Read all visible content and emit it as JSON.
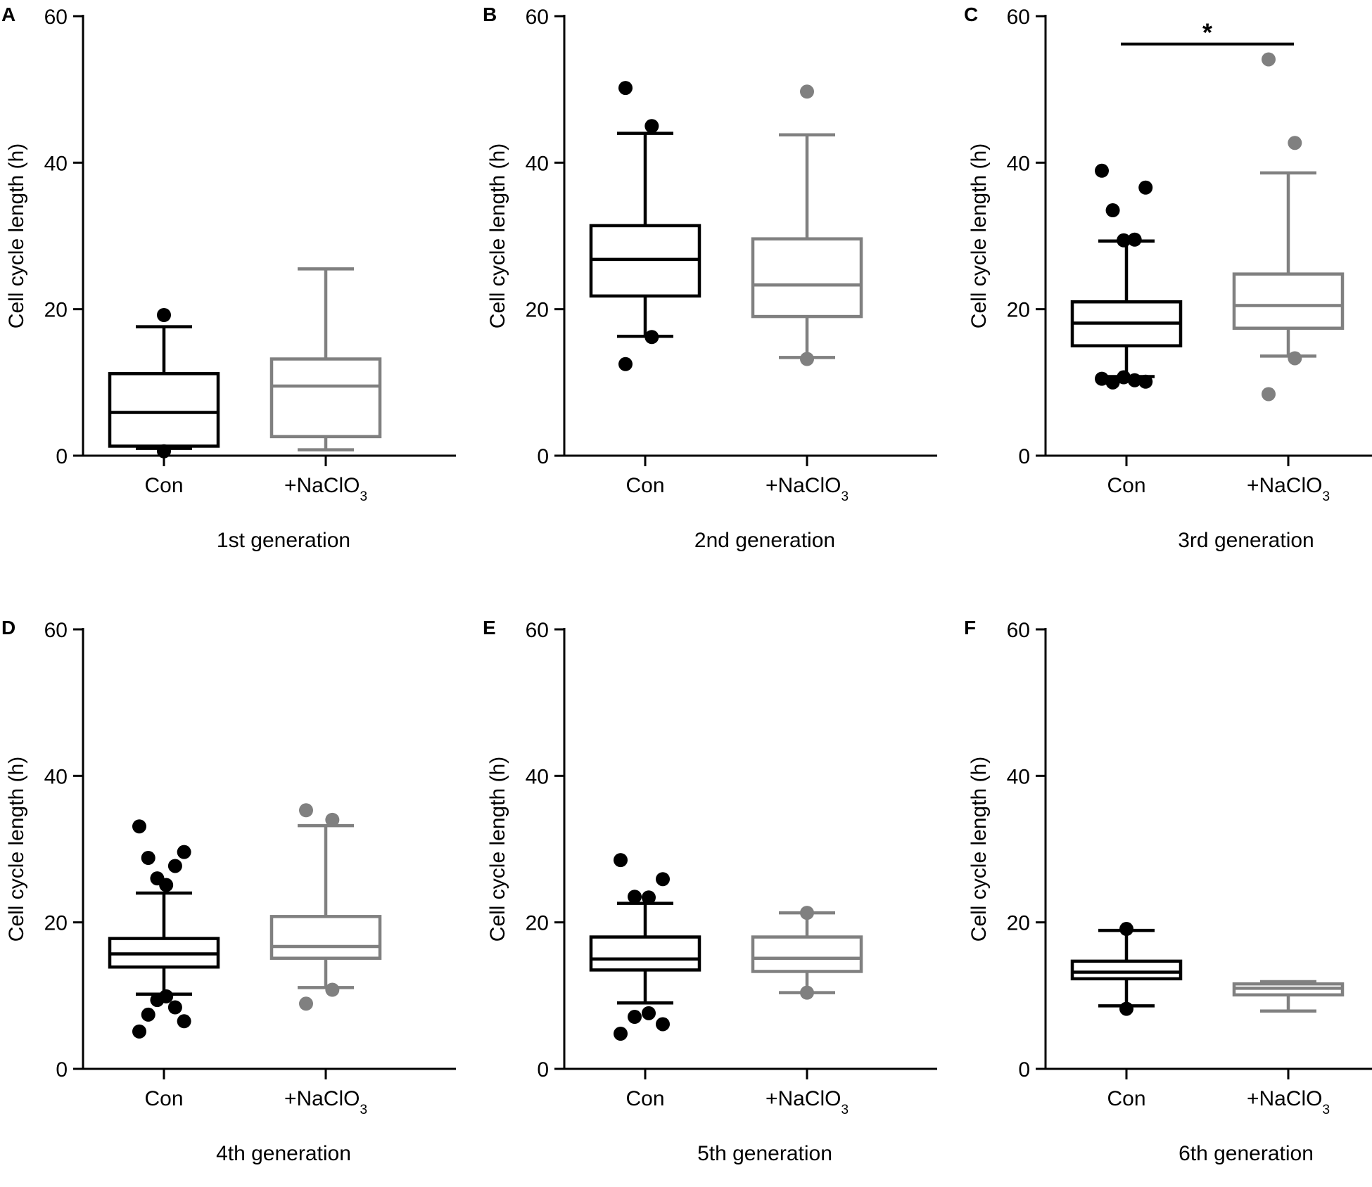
{
  "chart_data": [
    {
      "type": "box",
      "panel": "A",
      "title": "1st generation",
      "ylabel": "Cell cycle length (h)",
      "ylim": [
        0,
        60
      ],
      "yticks": [
        "0",
        "20",
        "40",
        "60"
      ],
      "groups": [
        {
          "label": "Con",
          "color": "#000000",
          "whisker_low": 1.0,
          "q1": 1.3,
          "median": 5.9,
          "q3": 11.2,
          "whisker_high": 17.6,
          "outliers": [
            19.2,
            0.6
          ]
        },
        {
          "label": "+NaClO",
          "subscript": "3",
          "color": "#808080",
          "whisker_low": 0.8,
          "q1": 2.6,
          "median": 9.5,
          "q3": 13.2,
          "whisker_high": 25.5,
          "outliers": []
        }
      ]
    },
    {
      "type": "box",
      "panel": "B",
      "title": "2nd generation",
      "ylabel": "Cell cycle length (h)",
      "ylim": [
        0,
        60
      ],
      "yticks": [
        "0",
        "20",
        "40",
        "60"
      ],
      "groups": [
        {
          "label": "Con",
          "color": "#000000",
          "whisker_low": 16.3,
          "q1": 21.8,
          "median": 26.8,
          "q3": 31.4,
          "whisker_high": 44.0,
          "outliers": [
            50.2,
            45.0,
            16.2,
            12.5
          ]
        },
        {
          "label": "+NaClO",
          "subscript": "3",
          "color": "#808080",
          "whisker_low": 13.4,
          "q1": 19.0,
          "median": 23.3,
          "q3": 29.6,
          "whisker_high": 43.8,
          "outliers": [
            49.7,
            13.2
          ]
        }
      ]
    },
    {
      "type": "box",
      "panel": "C",
      "title": "3rd generation",
      "ylabel": "Cell cycle length (h)",
      "ylim": [
        0,
        60
      ],
      "yticks": [
        "0",
        "20",
        "40",
        "60"
      ],
      "significance": {
        "label": "*",
        "y": 56.2
      },
      "groups": [
        {
          "label": "Con",
          "color": "#000000",
          "whisker_low": 10.8,
          "q1": 15.0,
          "median": 18.1,
          "q3": 21.0,
          "whisker_high": 29.3,
          "outliers": [
            38.9,
            36.6,
            33.5,
            29.5,
            29.4,
            10.7,
            10.3,
            10.0,
            10.1,
            10.5
          ]
        },
        {
          "label": "+NaClO",
          "subscript": "3",
          "color": "#808080",
          "whisker_low": 13.6,
          "q1": 17.4,
          "median": 20.5,
          "q3": 24.8,
          "whisker_high": 38.6,
          "outliers": [
            54.1,
            42.7,
            13.3,
            8.4
          ]
        }
      ]
    },
    {
      "type": "box",
      "panel": "D",
      "title": "4th generation",
      "ylabel": "Cell cycle length (h)",
      "ylim": [
        0,
        60
      ],
      "yticks": [
        "0",
        "20",
        "40",
        "60"
      ],
      "groups": [
        {
          "label": "Con",
          "color": "#000000",
          "whisker_low": 10.2,
          "q1": 13.9,
          "median": 15.7,
          "q3": 17.8,
          "whisker_high": 24.0,
          "outliers": [
            33.1,
            29.6,
            28.8,
            27.7,
            26.0,
            25.1,
            9.9,
            9.4,
            8.4,
            7.4,
            6.5,
            5.1
          ]
        },
        {
          "label": "+NaClO",
          "subscript": "3",
          "color": "#808080",
          "whisker_low": 11.1,
          "q1": 15.1,
          "median": 16.7,
          "q3": 20.8,
          "whisker_high": 33.2,
          "outliers": [
            35.3,
            34.0,
            10.8,
            8.9
          ]
        }
      ]
    },
    {
      "type": "box",
      "panel": "E",
      "title": "5th generation",
      "ylabel": "Cell cycle length (h)",
      "ylim": [
        0,
        60
      ],
      "yticks": [
        "0",
        "20",
        "40",
        "60"
      ],
      "groups": [
        {
          "label": "Con",
          "color": "#000000",
          "whisker_low": 9.0,
          "q1": 13.5,
          "median": 15.0,
          "q3": 18.0,
          "whisker_high": 22.6,
          "outliers": [
            28.5,
            25.9,
            23.5,
            23.4,
            7.6,
            7.1,
            6.1,
            4.8
          ]
        },
        {
          "label": "+NaClO",
          "subscript": "3",
          "color": "#808080",
          "whisker_low": 10.4,
          "q1": 13.3,
          "median": 15.1,
          "q3": 18.0,
          "whisker_high": 21.3,
          "outliers": [
            21.3,
            10.4
          ]
        }
      ]
    },
    {
      "type": "box",
      "panel": "F",
      "title": "6th generation",
      "ylabel": "Cell cycle length (h)",
      "ylim": [
        0,
        60
      ],
      "yticks": [
        "0",
        "20",
        "40",
        "60"
      ],
      "groups": [
        {
          "label": "Con",
          "color": "#000000",
          "whisker_low": 8.6,
          "q1": 12.3,
          "median": 13.2,
          "q3": 14.7,
          "whisker_high": 18.9,
          "outliers": [
            19.1,
            8.2
          ]
        },
        {
          "label": "+NaClO",
          "subscript": "3",
          "color": "#808080",
          "whisker_low": 7.9,
          "q1": 10.1,
          "median": 11.0,
          "q3": 11.6,
          "whisker_high": 11.9,
          "outliers": []
        }
      ]
    }
  ]
}
